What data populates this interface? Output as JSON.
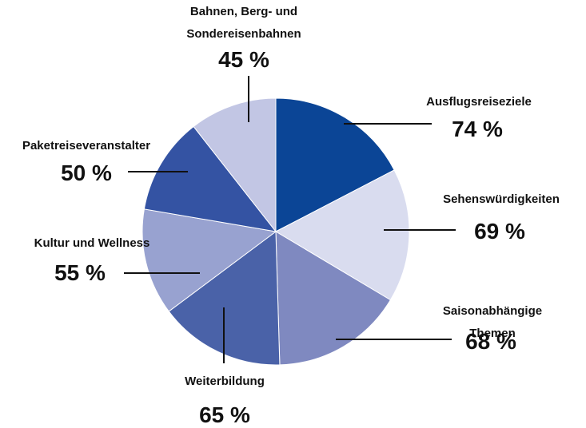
{
  "chart_data": {
    "type": "pie",
    "categories": [
      "Ausflugsreiseziele",
      "Sehenswürdigkeiten",
      "Saisonabhängige Themen",
      "Weiterbildung",
      "Kultur und Wellness",
      "Paketreiseveranstalter",
      "Bahnen, Berg- und Sondereisenbahnen"
    ],
    "values": [
      74,
      69,
      68,
      65,
      55,
      50,
      45
    ],
    "value_labels": [
      "74 %",
      "69 %",
      "68 %",
      "65 %",
      "55 %",
      "50 %",
      "45 %"
    ],
    "colors": [
      "#0b4596",
      "#d9dcef",
      "#7f89c0",
      "#4a62a8",
      "#98a2d0",
      "#3453a3",
      "#c2c6e4"
    ]
  }
}
